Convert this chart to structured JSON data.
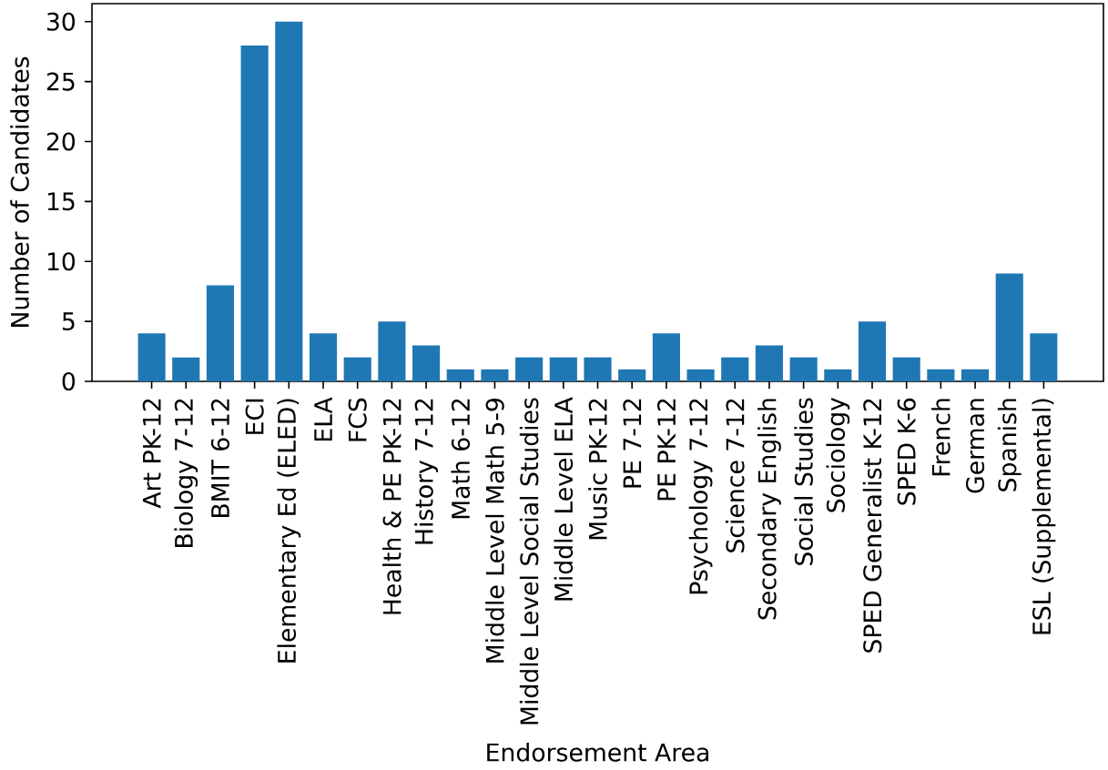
{
  "chart_data": {
    "type": "bar",
    "xlabel": "Endorsement Area",
    "ylabel": "Number of Candidates",
    "categories": [
      "Art PK-12",
      "Biology 7-12",
      "BMIT 6-12",
      "ECI",
      "Elementary Ed (ELED)",
      "ELA",
      "FCS",
      "Health & PE PK-12",
      "History 7-12",
      "Math 6-12",
      "Middle Level Math 5-9",
      "Middle Level Social Studies",
      "Middle Level ELA",
      "Music PK-12",
      "PE 7-12",
      "PE PK-12",
      "Psychology 7-12",
      "Science 7-12",
      "Secondary English",
      "Social Studies",
      "Sociology",
      "SPED Generalist K-12",
      "SPED K-6",
      "French",
      "German",
      "Spanish",
      "ESL (Supplemental)"
    ],
    "values": [
      4,
      2,
      8,
      28,
      30,
      4,
      2,
      5,
      3,
      1,
      1,
      2,
      2,
      2,
      1,
      4,
      1,
      2,
      3,
      2,
      1,
      5,
      2,
      1,
      1,
      9,
      4
    ],
    "color": "#1f77b4",
    "ylim": [
      0,
      31.5
    ],
    "yticks": [
      0,
      5,
      10,
      15,
      20,
      25,
      30
    ],
    "grid": false
  }
}
